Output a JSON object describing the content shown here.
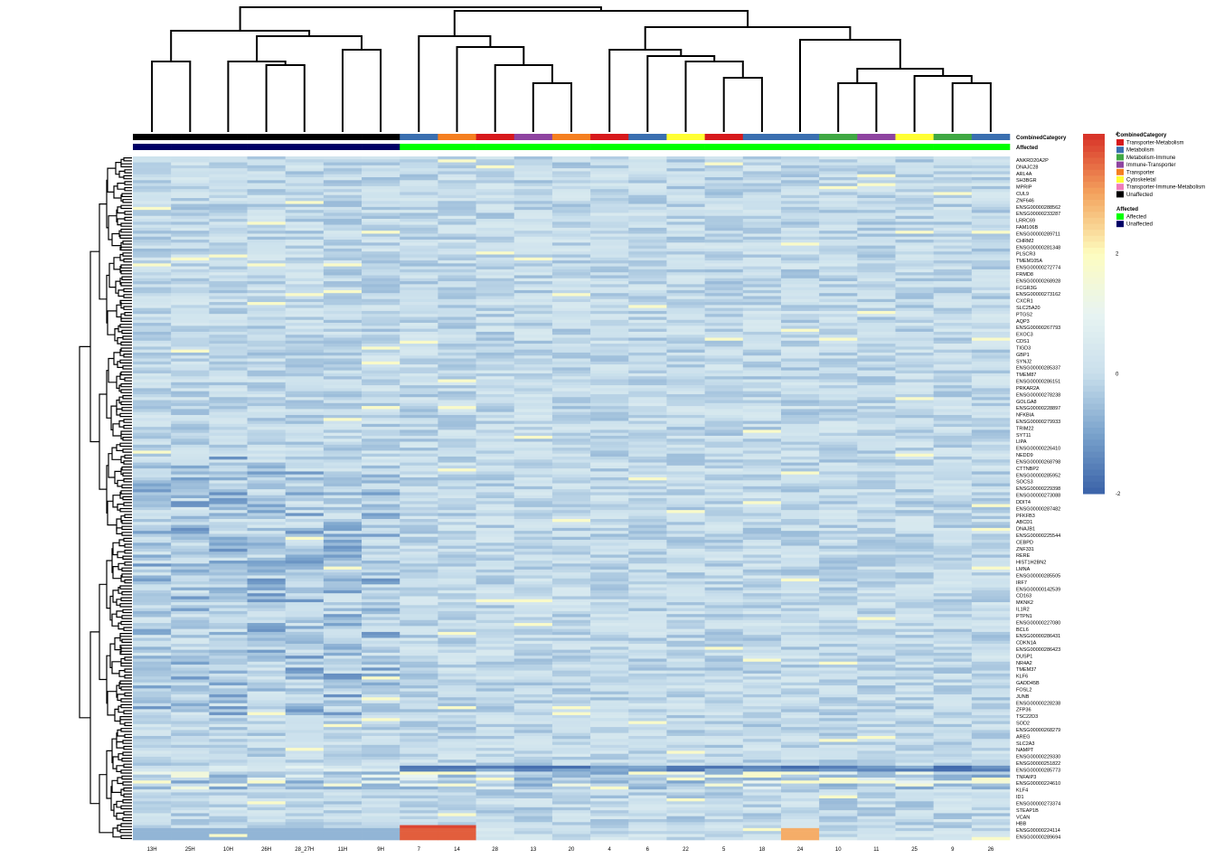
{
  "chart_data": {
    "type": "heatmap",
    "title": "",
    "color_scale": {
      "min": -2,
      "max": 4,
      "ticks": [
        -2,
        0,
        2,
        4
      ],
      "stops": [
        {
          "value": -2,
          "color": "#3a62a8"
        },
        {
          "value": -1,
          "color": "#7aa3cc"
        },
        {
          "value": 0,
          "color": "#c9dfec"
        },
        {
          "value": 1,
          "color": "#e8f4f2"
        },
        {
          "value": 2,
          "color": "#fdfcbf"
        },
        {
          "value": 3,
          "color": "#f4a45e"
        },
        {
          "value": 4,
          "color": "#d62f27"
        }
      ]
    },
    "columns": [
      "13H",
      "25H",
      "10H",
      "26H",
      "28_27H",
      "11H",
      "9H",
      "7",
      "14",
      "28",
      "13",
      "20",
      "4",
      "6",
      "22",
      "5",
      "18",
      "24",
      "10",
      "11",
      "25",
      "9",
      "26"
    ],
    "annotations": {
      "CombinedCategory": {
        "label": "CombinedCategory",
        "values": [
          "Unaffected",
          "Unaffected",
          "Unaffected",
          "Unaffected",
          "Unaffected",
          "Unaffected",
          "Unaffected",
          "Metabolism",
          "Transporter",
          "Transporter-Metabolism",
          "Immune-Transporter",
          "Transporter",
          "Transporter-Metabolism",
          "Metabolism",
          "Cytoskeletal",
          "Transporter-Metabolism",
          "Metabolism",
          "Metabolism",
          "Metabolism-Immune",
          "Immune-Transporter",
          "Cytoskeletal",
          "Metabolism-Immune",
          "Metabolism"
        ]
      },
      "Affected": {
        "label": "Affected",
        "values": [
          "Unaffected",
          "Unaffected",
          "Unaffected",
          "Unaffected",
          "Unaffected",
          "Unaffected",
          "Unaffected",
          "Affected",
          "Affected",
          "Affected",
          "Affected",
          "Affected",
          "Affected",
          "Affected",
          "Affected",
          "Affected",
          "Affected",
          "Affected",
          "Affected",
          "Affected",
          "Affected",
          "Affected",
          "Affected"
        ]
      }
    },
    "legend": {
      "category_title": "CombinedCategory",
      "category_items": [
        {
          "label": "Transporter-Metabolism",
          "color": "#d7191c"
        },
        {
          "label": "Metabolism",
          "color": "#3a6fb0"
        },
        {
          "label": "Metabolism-Immune",
          "color": "#3fa843"
        },
        {
          "label": "Immune-Transporter",
          "color": "#8e44a0"
        },
        {
          "label": "Transporter",
          "color": "#f57f20"
        },
        {
          "label": "Cytoskeletal",
          "color": "#ffff33"
        },
        {
          "label": "Transporter-Immune-Metabolism",
          "color": "#f07cba"
        },
        {
          "label": "Unaffected",
          "color": "#000000"
        }
      ],
      "affected_title": "Affected",
      "affected_items": [
        {
          "label": "Affected",
          "color": "#00ff00"
        },
        {
          "label": "Unaffected",
          "color": "#000066"
        }
      ]
    },
    "row_labels": [
      "ANKRD20A2P",
      "DNAJC28",
      "ARL4A",
      "SH3BGR",
      "MPRIP",
      "CUL9",
      "ZNF646",
      "ENSG00000288562",
      "ENSG00000233287",
      "LRRC69",
      "FAM106B",
      "ENSG00000289711",
      "CHRM2",
      "ENSG00000281348",
      "PLSCR3",
      "TMEM105A",
      "ENSG00000272774",
      "FRMD8",
      "ENSG00000268928",
      "FCGR3G",
      "ENSG00000273162",
      "CXCR1",
      "SLC25A20",
      "PTGS2",
      "AQP3",
      "ENSG00000267793",
      "EXOC3",
      "CDS1",
      "TIGD3",
      "GBP1",
      "SYNJ2",
      "ENSG00000285337",
      "TMEM87",
      "ENSG00000286151",
      "PRKAR2A",
      "ENSG00000278238",
      "GOLGA8",
      "ENSG00000228897",
      "NFKBIA",
      "ENSG00000279933",
      "TRIM22",
      "SYT11",
      "LIPA",
      "ENSG00000226410",
      "NEDD9",
      "ENSG00000268798",
      "CTTNBP2",
      "ENSG00000285952",
      "SOCS3",
      "ENSG00000229398",
      "ENSG00000273088",
      "DDIT4",
      "ENSG00000287482",
      "PFKFB3",
      "ABCD1",
      "DNAJB1",
      "ENSG00000225544",
      "CEBPD",
      "ZNF331",
      "RERE",
      "HIST1H2BN2",
      "LMNA",
      "ENSG00000285505",
      "IRF7",
      "ENSG00000142539",
      "CD163",
      "MKNK2",
      "IL1R2",
      "PTPN1",
      "ENSG00000227080",
      "BCL6",
      "ENSG00000286431",
      "CDKN1A",
      "ENSG00000286423",
      "DUSP1",
      "NR4A2",
      "TMEM37",
      "KLF6",
      "GADD45B",
      "FOSL2",
      "JUNB",
      "ENSG00000228238",
      "ZFP36",
      "TSC22D3",
      "SOD2",
      "ENSG00000268279",
      "AREG",
      "SLC2A3",
      "NAMPT",
      "ENSG00000229330",
      "ENSG00000251822",
      "ENSG00000285773",
      "TNFAIP3",
      "ENSG00000224610",
      "KLF4",
      "ID1",
      "ENSG00000273374",
      "STEAP1B",
      "VCAN",
      "HBB",
      "ENSG00000224114",
      "ENSG00000289694"
    ],
    "row_label_prefix": "ENSG"
  }
}
